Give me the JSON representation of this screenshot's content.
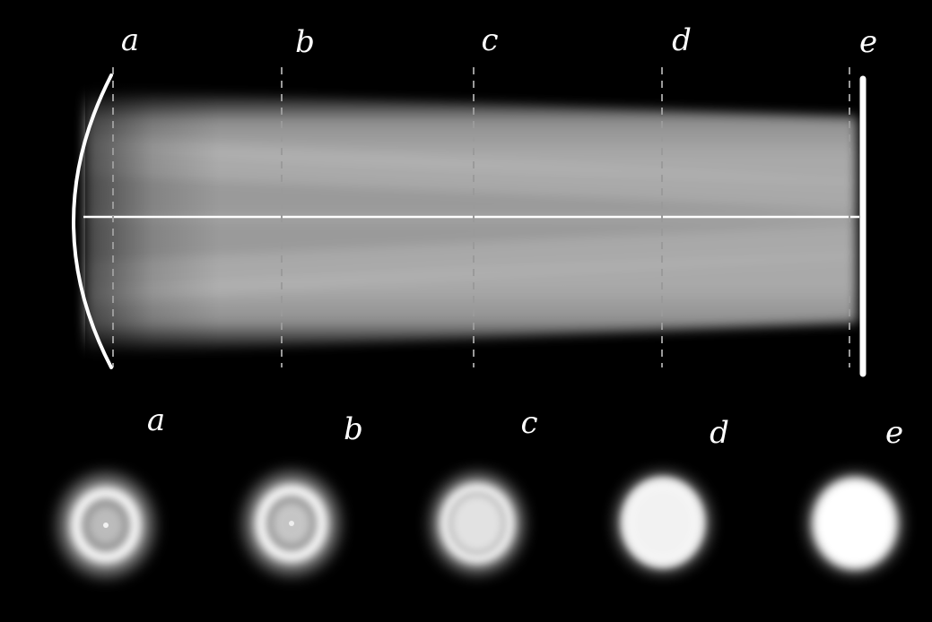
{
  "colors": {
    "background": "#000000",
    "optics": "#ffffff",
    "beam": "#a9a9a9",
    "beam_dark": "#8e8e8e",
    "guide": "#8a8a8a"
  },
  "planes": [
    {
      "label": "a"
    },
    {
      "label": "b"
    },
    {
      "label": "c"
    },
    {
      "label": "d"
    },
    {
      "label": "e"
    }
  ],
  "spots": [
    {
      "label": "a"
    },
    {
      "label": "b"
    },
    {
      "label": "c"
    },
    {
      "label": "d"
    },
    {
      "label": "e"
    }
  ]
}
